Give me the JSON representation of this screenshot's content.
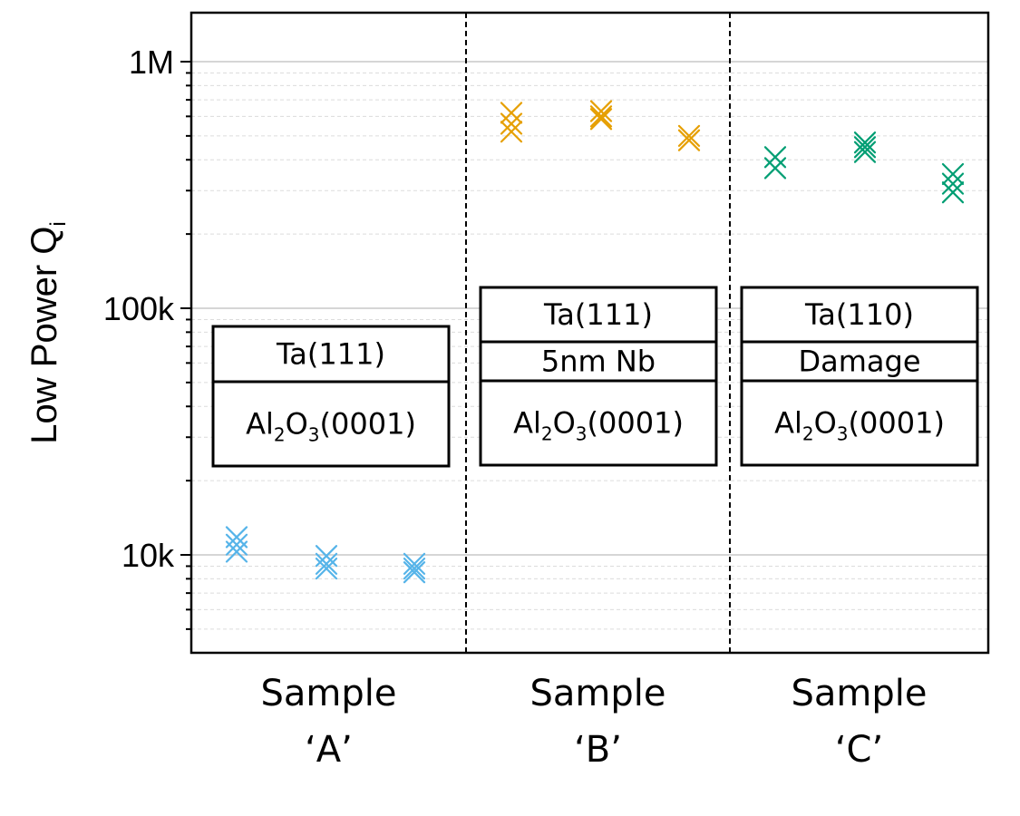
{
  "chart_data": {
    "type": "scatter",
    "title": "",
    "ylabel": "Low Power Q",
    "ylabel_subscript": "i",
    "yscale": "log",
    "ylim": [
      4500,
      1600000
    ],
    "yticks": [
      {
        "value": 10000,
        "label": "10k"
      },
      {
        "value": 100000,
        "label": "100k"
      },
      {
        "value": 1000000,
        "label": "1M"
      }
    ],
    "grid": "horizontal major and minor",
    "categories": [
      {
        "name": "A",
        "line1": "Sample",
        "line2": "‘A’",
        "color": "#56b4e9",
        "stack": [
          {
            "text": "Ta(111)"
          },
          {
            "text": "Al",
            "sub1": "2",
            "mid": "O",
            "sub2": "3",
            "tail": "(0001)"
          }
        ],
        "points": [
          {
            "x": 1,
            "y": 11800
          },
          {
            "x": 1,
            "y": 11000
          },
          {
            "x": 1,
            "y": 10300
          },
          {
            "x": 2,
            "y": 9900
          },
          {
            "x": 2,
            "y": 9200
          },
          {
            "x": 2,
            "y": 8800
          },
          {
            "x": 3,
            "y": 9200
          },
          {
            "x": 3,
            "y": 8800
          },
          {
            "x": 3,
            "y": 8500
          }
        ]
      },
      {
        "name": "B",
        "line1": "Sample",
        "line2": "‘B’",
        "color": "#e69f00",
        "stack": [
          {
            "text": "Ta(111)"
          },
          {
            "text": "5nm Nb"
          },
          {
            "text": "Al",
            "sub1": "2",
            "mid": "O",
            "sub2": "3",
            "tail": "(0001)"
          }
        ],
        "points": [
          {
            "x": 1,
            "y": 620000
          },
          {
            "x": 1,
            "y": 560000
          },
          {
            "x": 1,
            "y": 520000
          },
          {
            "x": 2,
            "y": 630000
          },
          {
            "x": 2,
            "y": 600000
          },
          {
            "x": 2,
            "y": 585000
          },
          {
            "x": 3,
            "y": 500000
          },
          {
            "x": 3,
            "y": 480000
          }
        ]
      },
      {
        "name": "C",
        "line1": "Sample",
        "line2": "‘C’",
        "color": "#009e73",
        "stack": [
          {
            "text": "Ta(110)"
          },
          {
            "text": "Damage"
          },
          {
            "text": "Al",
            "sub1": "2",
            "mid": "O",
            "sub2": "3",
            "tail": "(0001)"
          }
        ],
        "points": [
          {
            "x": 1,
            "y": 410000
          },
          {
            "x": 1,
            "y": 370000
          },
          {
            "x": 2,
            "y": 470000
          },
          {
            "x": 2,
            "y": 450000
          },
          {
            "x": 2,
            "y": 430000
          },
          {
            "x": 3,
            "y": 350000
          },
          {
            "x": 3,
            "y": 320000
          },
          {
            "x": 3,
            "y": 295000
          }
        ]
      }
    ]
  }
}
